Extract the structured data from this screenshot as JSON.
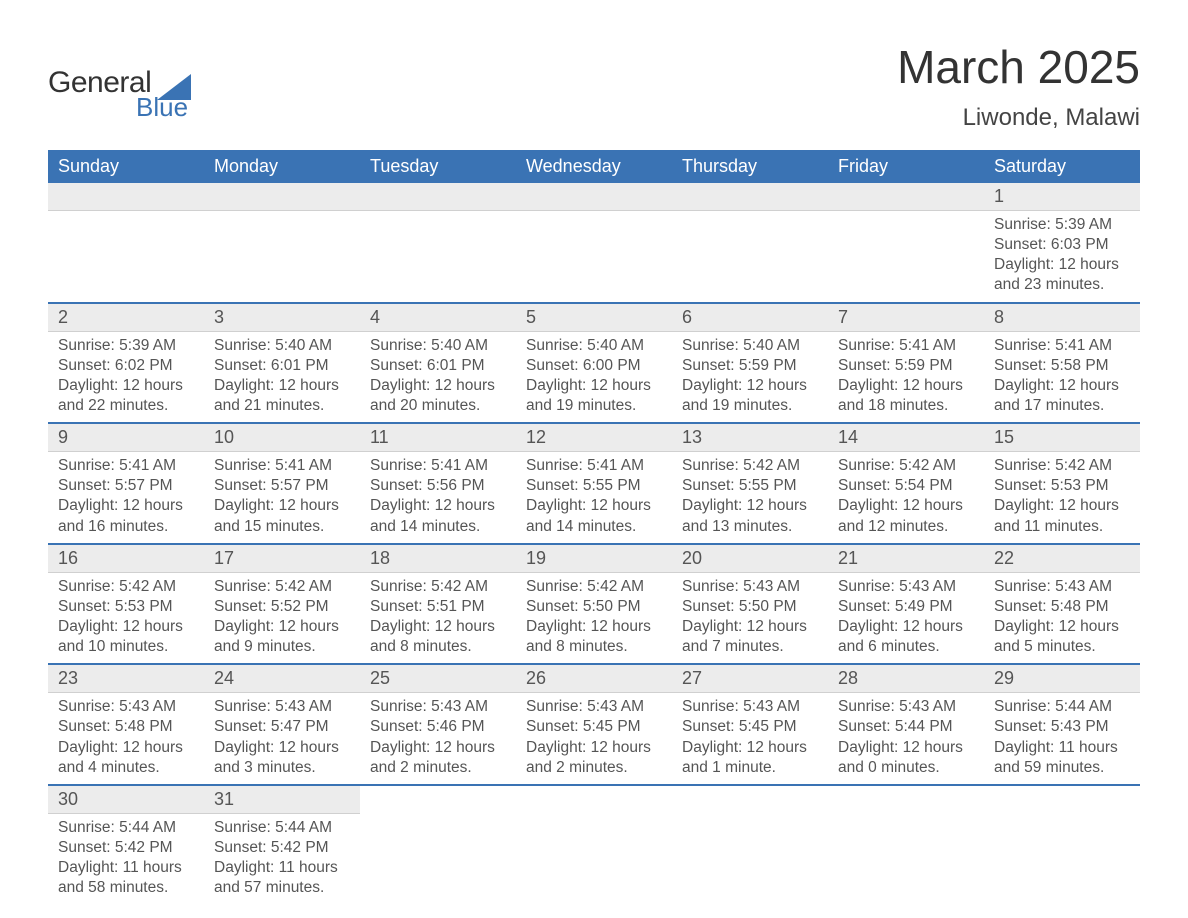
{
  "logo": {
    "text1": "General",
    "text2": "Blue",
    "accent_color": "#3a73b4"
  },
  "title": "March 2025",
  "subtitle": "Liwonde, Malawi",
  "header_bg": "#3a73b4",
  "header_fg": "#ffffff",
  "daynum_bg": "#ececec",
  "week_border": "#3a73b4",
  "day_names": [
    "Sunday",
    "Monday",
    "Tuesday",
    "Wednesday",
    "Thursday",
    "Friday",
    "Saturday"
  ],
  "weeks": [
    [
      {
        "n": "",
        "empty": true
      },
      {
        "n": "",
        "empty": true
      },
      {
        "n": "",
        "empty": true
      },
      {
        "n": "",
        "empty": true
      },
      {
        "n": "",
        "empty": true
      },
      {
        "n": "",
        "empty": true
      },
      {
        "n": "1",
        "sr": "Sunrise: 5:39 AM",
        "ss": "Sunset: 6:03 PM",
        "d1": "Daylight: 12 hours",
        "d2": "and 23 minutes."
      }
    ],
    [
      {
        "n": "2",
        "sr": "Sunrise: 5:39 AM",
        "ss": "Sunset: 6:02 PM",
        "d1": "Daylight: 12 hours",
        "d2": "and 22 minutes."
      },
      {
        "n": "3",
        "sr": "Sunrise: 5:40 AM",
        "ss": "Sunset: 6:01 PM",
        "d1": "Daylight: 12 hours",
        "d2": "and 21 minutes."
      },
      {
        "n": "4",
        "sr": "Sunrise: 5:40 AM",
        "ss": "Sunset: 6:01 PM",
        "d1": "Daylight: 12 hours",
        "d2": "and 20 minutes."
      },
      {
        "n": "5",
        "sr": "Sunrise: 5:40 AM",
        "ss": "Sunset: 6:00 PM",
        "d1": "Daylight: 12 hours",
        "d2": "and 19 minutes."
      },
      {
        "n": "6",
        "sr": "Sunrise: 5:40 AM",
        "ss": "Sunset: 5:59 PM",
        "d1": "Daylight: 12 hours",
        "d2": "and 19 minutes."
      },
      {
        "n": "7",
        "sr": "Sunrise: 5:41 AM",
        "ss": "Sunset: 5:59 PM",
        "d1": "Daylight: 12 hours",
        "d2": "and 18 minutes."
      },
      {
        "n": "8",
        "sr": "Sunrise: 5:41 AM",
        "ss": "Sunset: 5:58 PM",
        "d1": "Daylight: 12 hours",
        "d2": "and 17 minutes."
      }
    ],
    [
      {
        "n": "9",
        "sr": "Sunrise: 5:41 AM",
        "ss": "Sunset: 5:57 PM",
        "d1": "Daylight: 12 hours",
        "d2": "and 16 minutes."
      },
      {
        "n": "10",
        "sr": "Sunrise: 5:41 AM",
        "ss": "Sunset: 5:57 PM",
        "d1": "Daylight: 12 hours",
        "d2": "and 15 minutes."
      },
      {
        "n": "11",
        "sr": "Sunrise: 5:41 AM",
        "ss": "Sunset: 5:56 PM",
        "d1": "Daylight: 12 hours",
        "d2": "and 14 minutes."
      },
      {
        "n": "12",
        "sr": "Sunrise: 5:41 AM",
        "ss": "Sunset: 5:55 PM",
        "d1": "Daylight: 12 hours",
        "d2": "and 14 minutes."
      },
      {
        "n": "13",
        "sr": "Sunrise: 5:42 AM",
        "ss": "Sunset: 5:55 PM",
        "d1": "Daylight: 12 hours",
        "d2": "and 13 minutes."
      },
      {
        "n": "14",
        "sr": "Sunrise: 5:42 AM",
        "ss": "Sunset: 5:54 PM",
        "d1": "Daylight: 12 hours",
        "d2": "and 12 minutes."
      },
      {
        "n": "15",
        "sr": "Sunrise: 5:42 AM",
        "ss": "Sunset: 5:53 PM",
        "d1": "Daylight: 12 hours",
        "d2": "and 11 minutes."
      }
    ],
    [
      {
        "n": "16",
        "sr": "Sunrise: 5:42 AM",
        "ss": "Sunset: 5:53 PM",
        "d1": "Daylight: 12 hours",
        "d2": "and 10 minutes."
      },
      {
        "n": "17",
        "sr": "Sunrise: 5:42 AM",
        "ss": "Sunset: 5:52 PM",
        "d1": "Daylight: 12 hours",
        "d2": "and 9 minutes."
      },
      {
        "n": "18",
        "sr": "Sunrise: 5:42 AM",
        "ss": "Sunset: 5:51 PM",
        "d1": "Daylight: 12 hours",
        "d2": "and 8 minutes."
      },
      {
        "n": "19",
        "sr": "Sunrise: 5:42 AM",
        "ss": "Sunset: 5:50 PM",
        "d1": "Daylight: 12 hours",
        "d2": "and 8 minutes."
      },
      {
        "n": "20",
        "sr": "Sunrise: 5:43 AM",
        "ss": "Sunset: 5:50 PM",
        "d1": "Daylight: 12 hours",
        "d2": "and 7 minutes."
      },
      {
        "n": "21",
        "sr": "Sunrise: 5:43 AM",
        "ss": "Sunset: 5:49 PM",
        "d1": "Daylight: 12 hours",
        "d2": "and 6 minutes."
      },
      {
        "n": "22",
        "sr": "Sunrise: 5:43 AM",
        "ss": "Sunset: 5:48 PM",
        "d1": "Daylight: 12 hours",
        "d2": "and 5 minutes."
      }
    ],
    [
      {
        "n": "23",
        "sr": "Sunrise: 5:43 AM",
        "ss": "Sunset: 5:48 PM",
        "d1": "Daylight: 12 hours",
        "d2": "and 4 minutes."
      },
      {
        "n": "24",
        "sr": "Sunrise: 5:43 AM",
        "ss": "Sunset: 5:47 PM",
        "d1": "Daylight: 12 hours",
        "d2": "and 3 minutes."
      },
      {
        "n": "25",
        "sr": "Sunrise: 5:43 AM",
        "ss": "Sunset: 5:46 PM",
        "d1": "Daylight: 12 hours",
        "d2": "and 2 minutes."
      },
      {
        "n": "26",
        "sr": "Sunrise: 5:43 AM",
        "ss": "Sunset: 5:45 PM",
        "d1": "Daylight: 12 hours",
        "d2": "and 2 minutes."
      },
      {
        "n": "27",
        "sr": "Sunrise: 5:43 AM",
        "ss": "Sunset: 5:45 PM",
        "d1": "Daylight: 12 hours",
        "d2": "and 1 minute."
      },
      {
        "n": "28",
        "sr": "Sunrise: 5:43 AM",
        "ss": "Sunset: 5:44 PM",
        "d1": "Daylight: 12 hours",
        "d2": "and 0 minutes."
      },
      {
        "n": "29",
        "sr": "Sunrise: 5:44 AM",
        "ss": "Sunset: 5:43 PM",
        "d1": "Daylight: 11 hours",
        "d2": "and 59 minutes."
      }
    ],
    [
      {
        "n": "30",
        "sr": "Sunrise: 5:44 AM",
        "ss": "Sunset: 5:42 PM",
        "d1": "Daylight: 11 hours",
        "d2": "and 58 minutes."
      },
      {
        "n": "31",
        "sr": "Sunrise: 5:44 AM",
        "ss": "Sunset: 5:42 PM",
        "d1": "Daylight: 11 hours",
        "d2": "and 57 minutes."
      },
      {
        "n": "",
        "empty": true
      },
      {
        "n": "",
        "empty": true
      },
      {
        "n": "",
        "empty": true
      },
      {
        "n": "",
        "empty": true
      },
      {
        "n": "",
        "empty": true
      }
    ]
  ]
}
